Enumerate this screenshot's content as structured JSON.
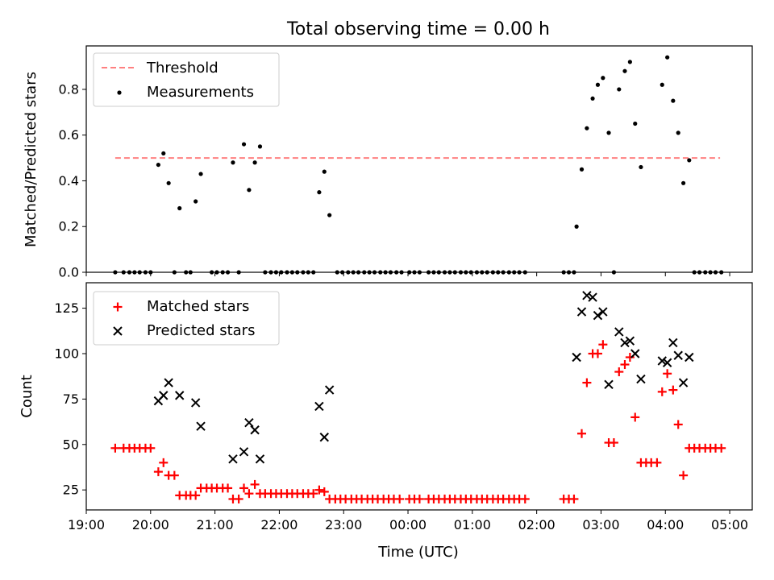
{
  "chart_data": [
    {
      "type": "scatter",
      "title": "Total observing time = 0.00 h",
      "ylabel": "Matched/Predicted stars",
      "xlabel": "",
      "x_unit": "hours since 19:00 UTC",
      "xlim": [
        19.0,
        29.35
      ],
      "ylim": [
        0.0,
        0.99
      ],
      "yticks": [
        0.0,
        0.2,
        0.4,
        0.6,
        0.8
      ],
      "yticklabels": [
        "0.0",
        "0.2",
        "0.4",
        "0.6",
        "0.8"
      ],
      "grid": false,
      "legend_position": "top-left",
      "threshold": {
        "name": "Threshold",
        "value": 0.5,
        "x_range": [
          19.45,
          28.85
        ],
        "color": "#ff8080"
      },
      "series": [
        {
          "name": "Measurements",
          "color": "#000000",
          "marker": "dot",
          "points": [
            [
              19.45,
              0
            ],
            [
              19.58,
              0
            ],
            [
              19.67,
              0
            ],
            [
              19.75,
              0
            ],
            [
              19.83,
              0
            ],
            [
              19.92,
              0
            ],
            [
              20.0,
              0
            ],
            [
              20.12,
              0.47
            ],
            [
              20.2,
              0.52
            ],
            [
              20.28,
              0.39
            ],
            [
              20.37,
              0
            ],
            [
              20.45,
              0.28
            ],
            [
              20.55,
              0
            ],
            [
              20.62,
              0
            ],
            [
              20.7,
              0.31
            ],
            [
              20.78,
              0.43
            ],
            [
              20.95,
              0
            ],
            [
              21.03,
              0
            ],
            [
              21.12,
              0
            ],
            [
              21.2,
              0
            ],
            [
              21.28,
              0.48
            ],
            [
              21.37,
              0
            ],
            [
              21.45,
              0.56
            ],
            [
              21.53,
              0.36
            ],
            [
              21.62,
              0.48
            ],
            [
              21.7,
              0.55
            ],
            [
              21.78,
              0
            ],
            [
              21.87,
              0
            ],
            [
              21.95,
              0
            ],
            [
              22.03,
              0
            ],
            [
              22.12,
              0
            ],
            [
              22.2,
              0
            ],
            [
              22.28,
              0
            ],
            [
              22.37,
              0
            ],
            [
              22.45,
              0
            ],
            [
              22.53,
              0
            ],
            [
              22.62,
              0.35
            ],
            [
              22.7,
              0.44
            ],
            [
              22.78,
              0.25
            ],
            [
              22.9,
              0
            ],
            [
              22.98,
              0
            ],
            [
              23.07,
              0
            ],
            [
              23.15,
              0
            ],
            [
              23.23,
              0
            ],
            [
              23.32,
              0
            ],
            [
              23.4,
              0
            ],
            [
              23.48,
              0
            ],
            [
              23.57,
              0
            ],
            [
              23.65,
              0
            ],
            [
              23.73,
              0
            ],
            [
              23.82,
              0
            ],
            [
              23.9,
              0
            ],
            [
              24.02,
              0
            ],
            [
              24.1,
              0
            ],
            [
              24.18,
              0
            ],
            [
              24.32,
              0
            ],
            [
              24.4,
              0
            ],
            [
              24.48,
              0
            ],
            [
              24.57,
              0
            ],
            [
              24.65,
              0
            ],
            [
              24.73,
              0
            ],
            [
              24.82,
              0
            ],
            [
              24.9,
              0
            ],
            [
              24.98,
              0
            ],
            [
              25.07,
              0
            ],
            [
              25.15,
              0
            ],
            [
              25.23,
              0
            ],
            [
              25.32,
              0
            ],
            [
              25.4,
              0
            ],
            [
              25.48,
              0
            ],
            [
              25.57,
              0
            ],
            [
              25.65,
              0
            ],
            [
              25.73,
              0
            ],
            [
              25.82,
              0
            ],
            [
              26.42,
              0
            ],
            [
              26.5,
              0
            ],
            [
              26.58,
              0
            ],
            [
              26.62,
              0.2
            ],
            [
              26.7,
              0.45
            ],
            [
              26.78,
              0.63
            ],
            [
              26.87,
              0.76
            ],
            [
              26.95,
              0.82
            ],
            [
              27.03,
              0.85
            ],
            [
              27.12,
              0.61
            ],
            [
              27.2,
              0
            ],
            [
              27.28,
              0.8
            ],
            [
              27.37,
              0.88
            ],
            [
              27.45,
              0.92
            ],
            [
              27.53,
              0.65
            ],
            [
              27.62,
              0.46
            ],
            [
              27.95,
              0.82
            ],
            [
              28.03,
              0.94
            ],
            [
              28.12,
              0.75
            ],
            [
              28.2,
              0.61
            ],
            [
              28.28,
              0.39
            ],
            [
              28.37,
              0.49
            ],
            [
              28.45,
              0
            ],
            [
              28.53,
              0
            ],
            [
              28.62,
              0
            ],
            [
              28.7,
              0
            ],
            [
              28.78,
              0
            ],
            [
              28.87,
              0
            ]
          ]
        }
      ]
    },
    {
      "type": "scatter",
      "title": "",
      "ylabel": "Count",
      "xlabel": "Time (UTC)",
      "x_unit": "hours since 19:00 UTC",
      "xlim": [
        19.0,
        29.35
      ],
      "ylim": [
        14,
        139
      ],
      "yticks": [
        25,
        50,
        75,
        100,
        125
      ],
      "yticklabels": [
        "25",
        "50",
        "75",
        "100",
        "125"
      ],
      "xticks": [
        19,
        20,
        21,
        22,
        23,
        24,
        25,
        26,
        27,
        28,
        29
      ],
      "xticklabels": [
        "19:00",
        "20:00",
        "21:00",
        "22:00",
        "23:00",
        "00:00",
        "01:00",
        "02:00",
        "03:00",
        "04:00",
        "05:00"
      ],
      "grid": false,
      "legend_position": "top-left",
      "series": [
        {
          "name": "Matched stars",
          "color": "#ff0000",
          "marker": "plus",
          "points": [
            [
              19.45,
              48
            ],
            [
              19.58,
              48
            ],
            [
              19.67,
              48
            ],
            [
              19.75,
              48
            ],
            [
              19.83,
              48
            ],
            [
              19.92,
              48
            ],
            [
              20.0,
              48
            ],
            [
              20.12,
              35
            ],
            [
              20.2,
              40
            ],
            [
              20.28,
              33
            ],
            [
              20.37,
              33
            ],
            [
              20.45,
              22
            ],
            [
              20.55,
              22
            ],
            [
              20.62,
              22
            ],
            [
              20.7,
              22
            ],
            [
              20.78,
              26
            ],
            [
              20.87,
              26
            ],
            [
              20.95,
              26
            ],
            [
              21.03,
              26
            ],
            [
              21.12,
              26
            ],
            [
              21.2,
              26
            ],
            [
              21.28,
              20
            ],
            [
              21.37,
              20
            ],
            [
              21.45,
              26
            ],
            [
              21.53,
              23
            ],
            [
              21.62,
              28
            ],
            [
              21.7,
              23
            ],
            [
              21.78,
              23
            ],
            [
              21.87,
              23
            ],
            [
              21.95,
              23
            ],
            [
              22.03,
              23
            ],
            [
              22.12,
              23
            ],
            [
              22.2,
              23
            ],
            [
              22.28,
              23
            ],
            [
              22.37,
              23
            ],
            [
              22.45,
              23
            ],
            [
              22.53,
              23
            ],
            [
              22.62,
              25
            ],
            [
              22.7,
              24
            ],
            [
              22.78,
              20
            ],
            [
              22.87,
              20
            ],
            [
              22.95,
              20
            ],
            [
              23.03,
              20
            ],
            [
              23.12,
              20
            ],
            [
              23.2,
              20
            ],
            [
              23.28,
              20
            ],
            [
              23.37,
              20
            ],
            [
              23.45,
              20
            ],
            [
              23.53,
              20
            ],
            [
              23.62,
              20
            ],
            [
              23.7,
              20
            ],
            [
              23.78,
              20
            ],
            [
              23.87,
              20
            ],
            [
              24.02,
              20
            ],
            [
              24.1,
              20
            ],
            [
              24.18,
              20
            ],
            [
              24.32,
              20
            ],
            [
              24.4,
              20
            ],
            [
              24.48,
              20
            ],
            [
              24.57,
              20
            ],
            [
              24.65,
              20
            ],
            [
              24.73,
              20
            ],
            [
              24.82,
              20
            ],
            [
              24.9,
              20
            ],
            [
              24.98,
              20
            ],
            [
              25.07,
              20
            ],
            [
              25.15,
              20
            ],
            [
              25.23,
              20
            ],
            [
              25.32,
              20
            ],
            [
              25.4,
              20
            ],
            [
              25.48,
              20
            ],
            [
              25.57,
              20
            ],
            [
              25.65,
              20
            ],
            [
              25.73,
              20
            ],
            [
              25.82,
              20
            ],
            [
              26.42,
              20
            ],
            [
              26.5,
              20
            ],
            [
              26.58,
              20
            ],
            [
              26.7,
              56
            ],
            [
              26.78,
              84
            ],
            [
              26.87,
              100
            ],
            [
              26.95,
              100
            ],
            [
              27.03,
              105
            ],
            [
              27.12,
              51
            ],
            [
              27.2,
              51
            ],
            [
              27.28,
              90
            ],
            [
              27.37,
              94
            ],
            [
              27.45,
              98
            ],
            [
              27.53,
              65
            ],
            [
              27.62,
              40
            ],
            [
              27.7,
              40
            ],
            [
              27.78,
              40
            ],
            [
              27.87,
              40
            ],
            [
              27.95,
              79
            ],
            [
              28.03,
              89
            ],
            [
              28.12,
              80
            ],
            [
              28.2,
              61
            ],
            [
              28.28,
              33
            ],
            [
              28.37,
              48
            ],
            [
              28.45,
              48
            ],
            [
              28.53,
              48
            ],
            [
              28.62,
              48
            ],
            [
              28.7,
              48
            ],
            [
              28.78,
              48
            ],
            [
              28.87,
              48
            ]
          ]
        },
        {
          "name": "Predicted stars",
          "color": "#000000",
          "marker": "x",
          "points": [
            [
              20.12,
              74
            ],
            [
              20.2,
              77
            ],
            [
              20.28,
              84
            ],
            [
              20.45,
              77
            ],
            [
              20.7,
              73
            ],
            [
              20.78,
              60
            ],
            [
              21.28,
              42
            ],
            [
              21.45,
              46
            ],
            [
              21.53,
              62
            ],
            [
              21.62,
              58
            ],
            [
              21.7,
              42
            ],
            [
              22.62,
              71
            ],
            [
              22.7,
              54
            ],
            [
              22.78,
              80
            ],
            [
              26.62,
              98
            ],
            [
              26.7,
              123
            ],
            [
              26.78,
              132
            ],
            [
              26.87,
              131
            ],
            [
              26.95,
              121
            ],
            [
              27.03,
              123
            ],
            [
              27.12,
              83
            ],
            [
              27.28,
              112
            ],
            [
              27.37,
              106
            ],
            [
              27.45,
              107
            ],
            [
              27.53,
              100
            ],
            [
              27.62,
              86
            ],
            [
              27.95,
              96
            ],
            [
              28.03,
              95
            ],
            [
              28.12,
              106
            ],
            [
              28.2,
              99
            ],
            [
              28.28,
              84
            ],
            [
              28.37,
              98
            ]
          ]
        }
      ]
    }
  ]
}
